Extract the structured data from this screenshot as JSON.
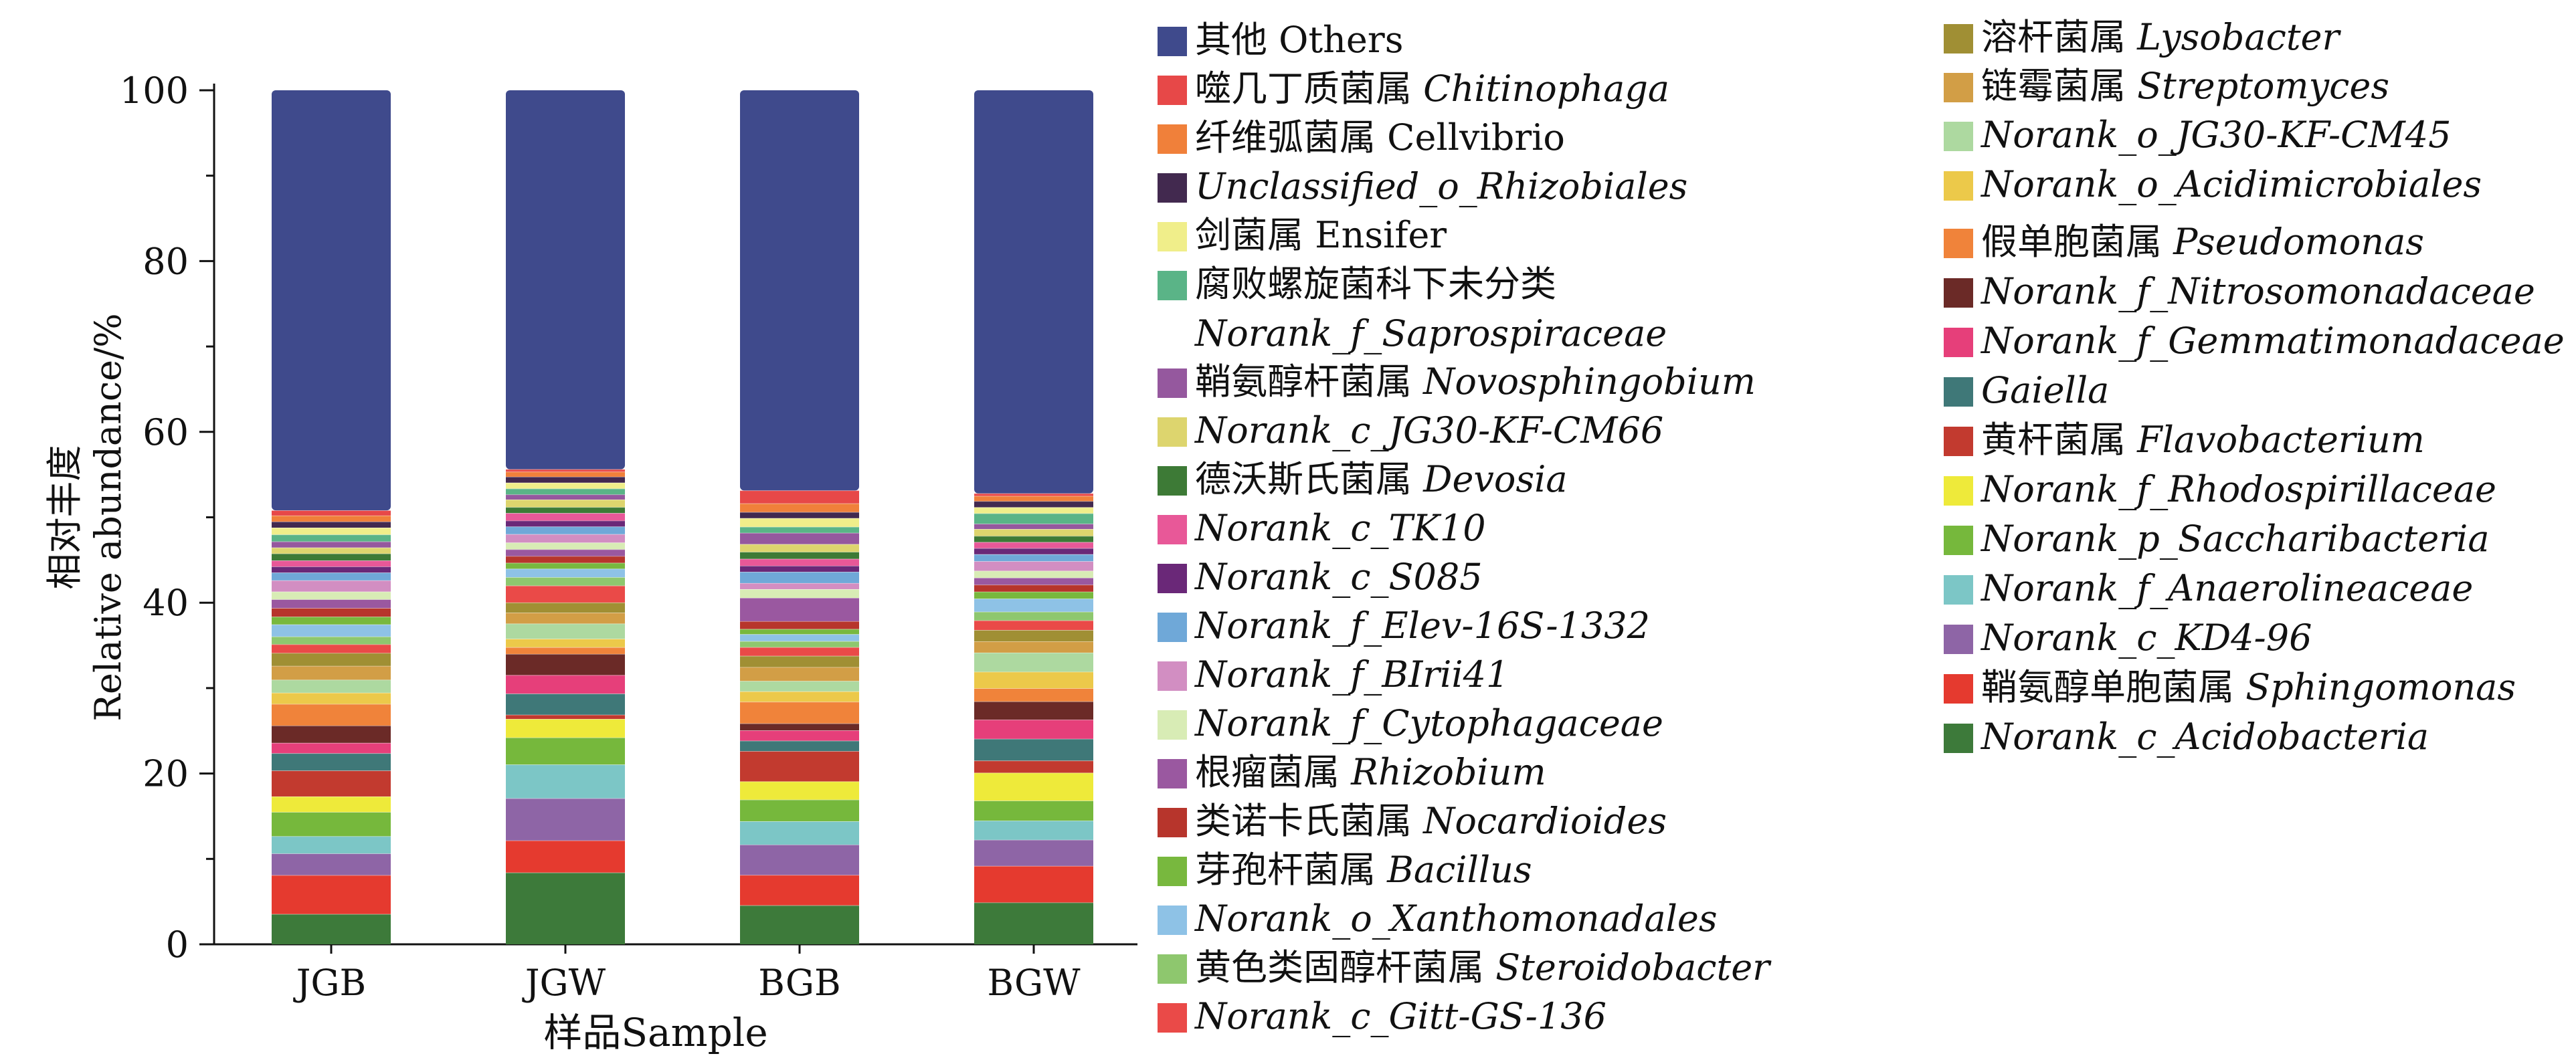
{
  "chart_data": {
    "type": "bar",
    "stacked": true,
    "title": "",
    "categories": [
      "JGB",
      "JGW",
      "BGB",
      "BGW"
    ],
    "xlabel": "样品Sample",
    "ylabel": [
      "相对丰度",
      "Relative abundance/%"
    ],
    "ylim": [
      0,
      100
    ],
    "yticks": [
      0,
      20,
      40,
      60,
      80,
      100
    ],
    "grid": false,
    "legend_position": "right, two columns",
    "series": [
      {
        "cn": "",
        "name": "Norank_c_Acidobacteria",
        "italic": true,
        "color": "#3d7a3a",
        "values": [
          3.5,
          8.5,
          4.5,
          4.8
        ]
      },
      {
        "cn": "鞘氨醇单胞菌属",
        "name": "Sphingomonas",
        "italic": true,
        "color": "#e53a2f",
        "values": [
          4.5,
          3.8,
          3.5,
          4.2
        ]
      },
      {
        "cn": "",
        "name": "Norank_c_KD4-96",
        "italic": true,
        "color": "#8e65a6",
        "values": [
          2.5,
          5.0,
          3.5,
          3.0
        ]
      },
      {
        "cn": "",
        "name": "Norank_f_Anaerolineaceae",
        "italic": true,
        "color": "#7cc6c6",
        "values": [
          2.0,
          4.0,
          2.7,
          2.2
        ]
      },
      {
        "cn": "",
        "name": "Norank_p_Saccharibacteria",
        "italic": true,
        "color": "#76b83c",
        "values": [
          2.8,
          3.2,
          2.5,
          2.3
        ]
      },
      {
        "cn": "",
        "name": "Norank_f_Rhodospirillaceae",
        "italic": true,
        "color": "#eeea3a",
        "values": [
          1.8,
          2.2,
          2.1,
          3.2
        ]
      },
      {
        "cn": "黄杆菌属",
        "name": "Flavobacterium",
        "italic": true,
        "color": "#c23a2f",
        "values": [
          3.0,
          0.5,
          3.5,
          1.4
        ]
      },
      {
        "cn": "",
        "name": "Gaiella",
        "italic": true,
        "color": "#3f7878",
        "values": [
          2.0,
          2.5,
          1.2,
          2.5
        ]
      },
      {
        "cn": "",
        "name": "Norank_f_Gemmatimonadaceae",
        "italic": true,
        "color": "#e63f7a",
        "values": [
          1.2,
          2.2,
          1.2,
          2.2
        ]
      },
      {
        "cn": "",
        "name": "Norank_f_Nitrosomonadaceae",
        "italic": true,
        "color": "#6b2a27",
        "values": [
          2.0,
          2.5,
          0.8,
          2.1
        ]
      },
      {
        "cn": "假单胞菌属",
        "name": "Pseudomonas",
        "italic": true,
        "color": "#f0833a",
        "values": [
          2.5,
          0.8,
          2.5,
          1.5
        ]
      },
      {
        "cn": "",
        "name": "Norank_o_Acidimicrobiales",
        "italic": true,
        "color": "#ecc94a",
        "values": [
          1.3,
          1.0,
          1.2,
          1.9
        ]
      },
      {
        "cn": "",
        "name": "Norank_o_JG30-KF-CM45",
        "italic": true,
        "color": "#add9a0",
        "values": [
          1.5,
          1.8,
          1.2,
          2.2
        ]
      },
      {
        "cn": "链霉菌属",
        "name": "Streptomyces",
        "italic": true,
        "color": "#d29e46",
        "values": [
          1.6,
          1.3,
          1.6,
          1.3
        ]
      },
      {
        "cn": "溶杆菌属",
        "name": "Lysobacter",
        "italic": true,
        "color": "#a08f34",
        "values": [
          1.5,
          1.2,
          1.3,
          1.3
        ]
      },
      {
        "cn": "",
        "name": "Norank_c_Gitt-GS-136",
        "italic": true,
        "color": "#ea4a48",
        "values": [
          1.0,
          2.0,
          1.0,
          1.1
        ]
      },
      {
        "cn": "黄色类固醇杆菌属",
        "name": "Steroidobacter",
        "italic": true,
        "color": "#8ec76e",
        "values": [
          0.9,
          1.0,
          0.7,
          1.0
        ]
      },
      {
        "cn": "",
        "name": "Norank_o_Xanthomonadales",
        "italic": true,
        "color": "#8ec2e6",
        "values": [
          1.4,
          1.0,
          0.8,
          1.5
        ]
      },
      {
        "cn": "芽孢杆菌属",
        "name": "Bacillus",
        "italic": true,
        "color": "#78b83e",
        "values": [
          0.9,
          0.7,
          0.6,
          0.8
        ]
      },
      {
        "cn": "类诺卡氏菌属",
        "name": "Nocardioides",
        "italic": true,
        "color": "#b7352c",
        "values": [
          1.0,
          0.8,
          0.9,
          0.8
        ]
      },
      {
        "cn": "根瘤菌属",
        "name": "Rhizobium",
        "italic": true,
        "color": "#9a58a0",
        "values": [
          1.0,
          0.8,
          2.7,
          0.8
        ]
      },
      {
        "cn": "",
        "name": "Norank_f_Cytophagaceae",
        "italic": true,
        "color": "#d8ecb5",
        "values": [
          0.9,
          0.8,
          1.0,
          0.8
        ]
      },
      {
        "cn": "",
        "name": "Norank_f_BIrii41",
        "italic": true,
        "color": "#d28ec2",
        "values": [
          1.3,
          1.0,
          0.7,
          1.1
        ]
      },
      {
        "cn": "",
        "name": "Norank_f_Elev-16S-1332",
        "italic": true,
        "color": "#6fa8d8",
        "values": [
          0.9,
          0.9,
          1.3,
          0.8
        ]
      },
      {
        "cn": "",
        "name": "Norank_c_S085",
        "italic": true,
        "color": "#6a2878",
        "values": [
          0.7,
          0.7,
          0.7,
          0.7
        ]
      },
      {
        "cn": "",
        "name": "Norank_c_TK10",
        "italic": true,
        "color": "#e85898",
        "values": [
          0.7,
          0.9,
          0.8,
          0.7
        ]
      },
      {
        "cn": "德沃斯氏菌属",
        "name": "Devosia",
        "italic": true,
        "color": "#3d7a36",
        "values": [
          0.8,
          0.7,
          0.8,
          0.7
        ]
      },
      {
        "cn": "",
        "name": "Norank_c_JG30-KF-CM66",
        "italic": true,
        "color": "#ddd56e",
        "values": [
          0.7,
          0.9,
          0.9,
          0.8
        ]
      },
      {
        "cn": "鞘氨醇杆菌属",
        "name": "Novosphingobium",
        "italic": true,
        "color": "#95589e",
        "values": [
          0.7,
          0.6,
          1.3,
          0.6
        ]
      },
      {
        "cn": "腐败螺旋菌科下未分类",
        "name": "Norank_f_Saprospiraceae",
        "italic": true,
        "color": "#5ab487",
        "values": [
          0.8,
          0.7,
          0.7,
          1.2
        ]
      },
      {
        "cn": "剑菌属",
        "name": "Ensifer",
        "italic": false,
        "color": "#f0ee8a",
        "values": [
          0.8,
          0.7,
          1.0,
          0.7
        ]
      },
      {
        "cn": "",
        "name": "Unclassified_o_Rhizobiales",
        "italic": true,
        "color": "#42294f",
        "values": [
          0.7,
          0.7,
          0.7,
          0.7
        ]
      },
      {
        "cn": "纤维弧菌属",
        "name": "Cellvibrio",
        "italic": false,
        "color": "#f0803a",
        "values": [
          0.7,
          0.6,
          1.0,
          0.6
        ]
      },
      {
        "cn": "噬几丁质菌属",
        "name": "Chitinophaga",
        "italic": true,
        "color": "#e74848",
        "values": [
          0.6,
          0.3,
          1.5,
          0.3
        ]
      },
      {
        "cn": "其他",
        "name": "Others",
        "italic": false,
        "color": "#3f4a8c",
        "values": [
          48.6,
          44.9,
          46.2,
          46.3
        ]
      }
    ],
    "legend_col1": [
      "Others",
      "Chitinophaga",
      "Cellvibrio",
      "Unclassified_o_Rhizobiales",
      "Ensifer",
      "Norank_f_Saprospiraceae",
      "Novosphingobium",
      "Norank_c_JG30-KF-CM66",
      "Devosia",
      "Norank_c_TK10",
      "Norank_c_S085",
      "Norank_f_Elev-16S-1332",
      "Norank_f_BIrii41",
      "Norank_f_Cytophagaceae",
      "Rhizobium",
      "Nocardioides",
      "Bacillus",
      "Norank_o_Xanthomonadales",
      "Steroidobacter",
      "Norank_c_Gitt-GS-136"
    ],
    "legend_col2": [
      "Lysobacter",
      "Streptomyces",
      "Norank_o_JG30-KF-CM45",
      "Norank_o_Acidimicrobiales",
      "Pseudomonas",
      "Norank_f_Nitrosomonadaceae",
      "Norank_f_Gemmatimonadaceae",
      "Gaiella",
      "Flavobacterium",
      "Norank_f_Rhodospirillaceae",
      "Norank_p_Saccharibacteria",
      "Norank_f_Anaerolineaceae",
      "Norank_c_KD4-96",
      "Sphingomonas",
      "Norank_c_Acidobacteria"
    ]
  }
}
